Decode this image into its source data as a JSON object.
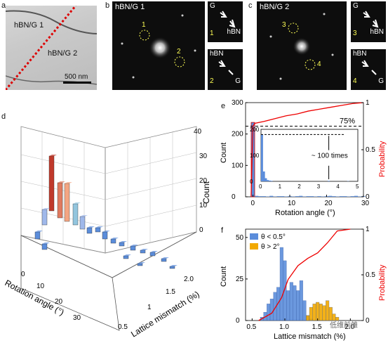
{
  "panels": {
    "a": {
      "label": "a",
      "regions": [
        "hBN/G 1",
        "hBN/G 2"
      ],
      "scalebar": "500 nm"
    },
    "b": {
      "label": "b",
      "title": "hBN/G 1",
      "spots": [
        "1",
        "2"
      ],
      "inset1": {
        "top": "G",
        "bottom": "hBN",
        "num": "1"
      },
      "inset2": {
        "top": "hBN",
        "bottom": "G",
        "num": "2"
      }
    },
    "c": {
      "label": "c",
      "title": "hBN/G 2",
      "spots": [
        "3",
        "4"
      ],
      "inset1": {
        "top": "G",
        "bottom": "hBN",
        "num": "3"
      },
      "inset2": {
        "top": "hBN",
        "bottom": "G",
        "num": "4"
      }
    },
    "d": {
      "label": "d",
      "xaxis_label": "Rotation angle (°)",
      "yaxis_label": "Lattice mismatch (%)",
      "zaxis_label": "Count",
      "x_ticks": [
        "0",
        "10",
        "20",
        "30"
      ],
      "y_ticks": [
        "0.5",
        "1",
        "1.5",
        "2.0"
      ],
      "z_ticks": [
        "0",
        "10",
        "20",
        "30",
        "40"
      ]
    },
    "e": {
      "label": "e",
      "annotation_pct": "75%",
      "inset_note": "~ 100 times"
    },
    "f": {
      "label": "f"
    }
  },
  "watermark": "低维前雏",
  "chart_data": [
    {
      "type": "bar",
      "panel": "e",
      "xlabel": "Rotation angle (°)",
      "ylabel": "Count",
      "ylabel_right": "Probability",
      "xlim": [
        -2,
        30
      ],
      "ylim": [
        0,
        300
      ],
      "ylim_right": [
        0,
        1
      ],
      "x_ticks": [
        "0",
        "10",
        "20",
        "30"
      ],
      "y_ticks": [
        "0",
        "100",
        "200",
        "300"
      ],
      "y_right_ticks": [
        "0",
        "0.5",
        "1"
      ],
      "series": [
        {
          "values": [
            237,
            3,
            2,
            2,
            1,
            3,
            1,
            2,
            2,
            1,
            2,
            1,
            2,
            3,
            1,
            2,
            2,
            1,
            2,
            1,
            2,
            3,
            2,
            1,
            2,
            2,
            1,
            2,
            3,
            1,
            2
          ],
          "x": [
            0,
            1,
            2,
            3,
            4,
            5,
            6,
            7,
            8,
            9,
            10,
            11,
            12,
            13,
            14,
            15,
            16,
            17,
            18,
            19,
            20,
            21,
            22,
            23,
            24,
            25,
            26,
            27,
            28,
            29,
            30
          ]
        }
      ],
      "cdf": {
        "x": [
          -0.5,
          0,
          0.5,
          3,
          6,
          9,
          12,
          15,
          18,
          21,
          24,
          27,
          30
        ],
        "y": [
          0,
          0.75,
          0.78,
          0.8,
          0.83,
          0.86,
          0.88,
          0.91,
          0.93,
          0.95,
          0.97,
          0.99,
          1.0
        ]
      },
      "reference_line": 0.75,
      "inset": {
        "xlim": [
          0,
          5
        ],
        "ylim": [
          0,
          200
        ],
        "x_ticks": [
          "0",
          "1",
          "2",
          "3",
          "4",
          "5"
        ],
        "y_ticks": [
          "0",
          "100",
          "200"
        ],
        "x": [
          0.05,
          0.15,
          0.25,
          0.35,
          0.45,
          0.55,
          3.5,
          4.5
        ],
        "values": [
          180,
          38,
          12,
          5,
          3,
          2,
          2,
          1
        ]
      }
    },
    {
      "type": "bar",
      "panel": "f",
      "xlabel": "Lattice mismatch (%)",
      "ylabel": "Count",
      "ylabel_right": "Probability",
      "xlim": [
        0.4,
        2.2
      ],
      "ylim": [
        0,
        55
      ],
      "ylim_right": [
        0,
        1
      ],
      "x_ticks": [
        "0.5",
        "1.0",
        "1.5",
        "2.0"
      ],
      "y_ticks": [
        "0",
        "25",
        "50"
      ],
      "y_right_ticks": [
        "0",
        "0.5",
        "1"
      ],
      "legend_position": "top-left",
      "series": [
        {
          "name": "θ < 0.5°",
          "color": "#5b8ddb",
          "x": [
            0.65,
            0.7,
            0.75,
            0.8,
            0.85,
            0.9,
            0.95,
            1.0,
            1.05,
            1.1,
            1.15,
            1.2,
            1.25,
            1.3,
            1.35,
            1.4
          ],
          "values": [
            2,
            5,
            10,
            13,
            17,
            20,
            44,
            36,
            18,
            23,
            21,
            18,
            24,
            12,
            3,
            1
          ]
        },
        {
          "name": "θ > 2°",
          "color": "#f2a900",
          "x": [
            1.35,
            1.4,
            1.45,
            1.5,
            1.55,
            1.6,
            1.65,
            1.7,
            1.75,
            1.8
          ],
          "values": [
            3,
            8,
            10,
            11,
            10,
            9,
            12,
            8,
            4,
            2
          ]
        }
      ],
      "cdf": {
        "x": [
          0.6,
          0.8,
          0.95,
          1.05,
          1.2,
          1.35,
          1.5,
          1.65,
          1.8,
          2.0
        ],
        "y": [
          0,
          0.08,
          0.25,
          0.45,
          0.6,
          0.68,
          0.74,
          0.85,
          0.98,
          1.0
        ]
      }
    }
  ]
}
